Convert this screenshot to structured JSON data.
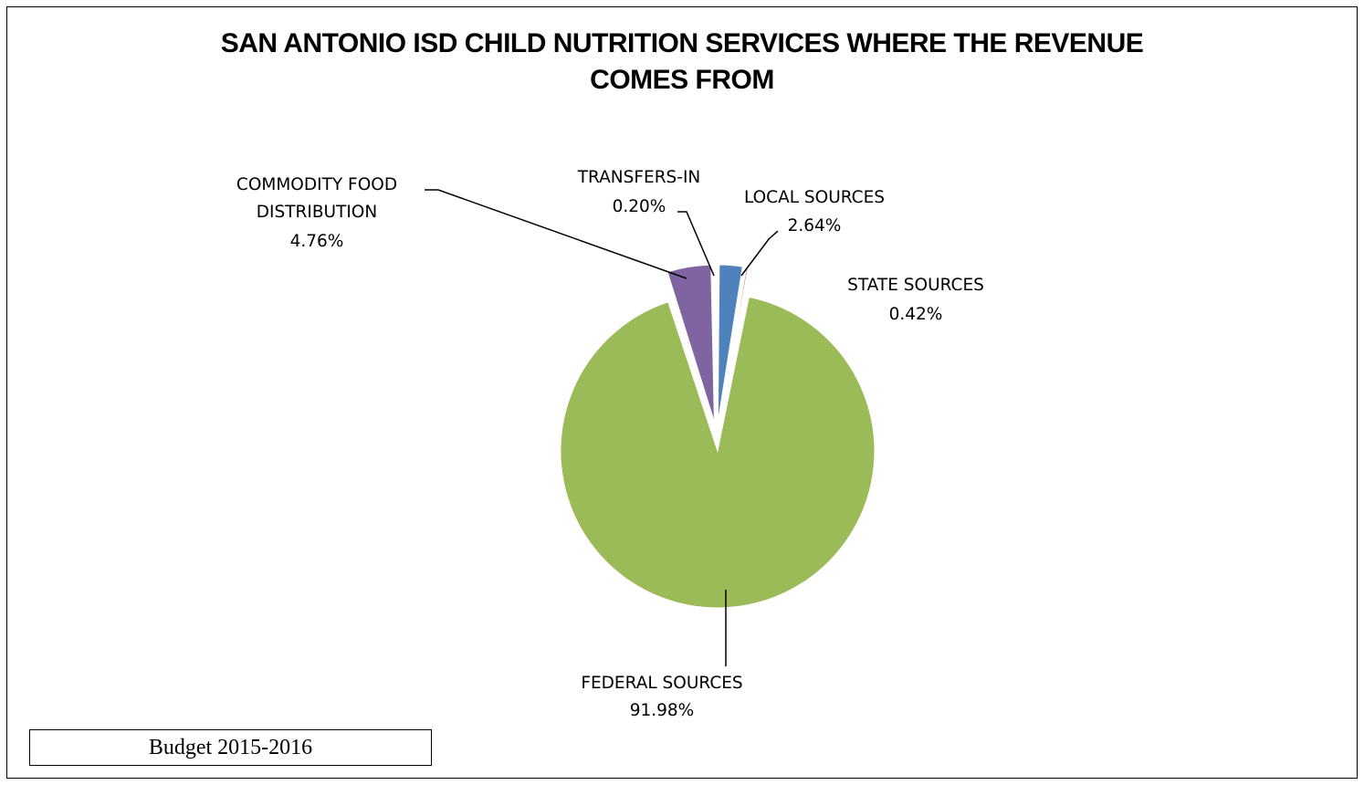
{
  "chart_data": {
    "type": "pie",
    "title": {
      "lines": [
        "SAN ANTONIO ISD CHILD NUTRITION SERVICES WHERE THE REVENUE",
        "COMES FROM"
      ]
    },
    "slices": [
      {
        "key": "local",
        "label_lines": [
          "LOCAL SOURCES"
        ],
        "value_label": "2.64%",
        "value": 2.64,
        "color": "#4f81bd"
      },
      {
        "key": "state",
        "label_lines": [
          "STATE SOURCES"
        ],
        "value_label": "0.42%",
        "value": 0.42,
        "color": "#c0504d"
      },
      {
        "key": "federal",
        "label_lines": [
          "FEDERAL SOURCES"
        ],
        "value_label": "91.98%",
        "value": 91.98,
        "color": "#9bbb59"
      },
      {
        "key": "commodity",
        "label_lines": [
          "COMMODITY FOOD",
          "DISTRIBUTION"
        ],
        "value_label": "4.76%",
        "value": 4.76,
        "color": "#8064a2"
      },
      {
        "key": "transfers",
        "label_lines": [
          "TRANSFERS-IN"
        ],
        "value_label": "0.20%",
        "value": 0.2,
        "color": "#4bacc6"
      }
    ],
    "exploded": true,
    "legend": "none"
  },
  "caption": "Budget 2015-2016"
}
